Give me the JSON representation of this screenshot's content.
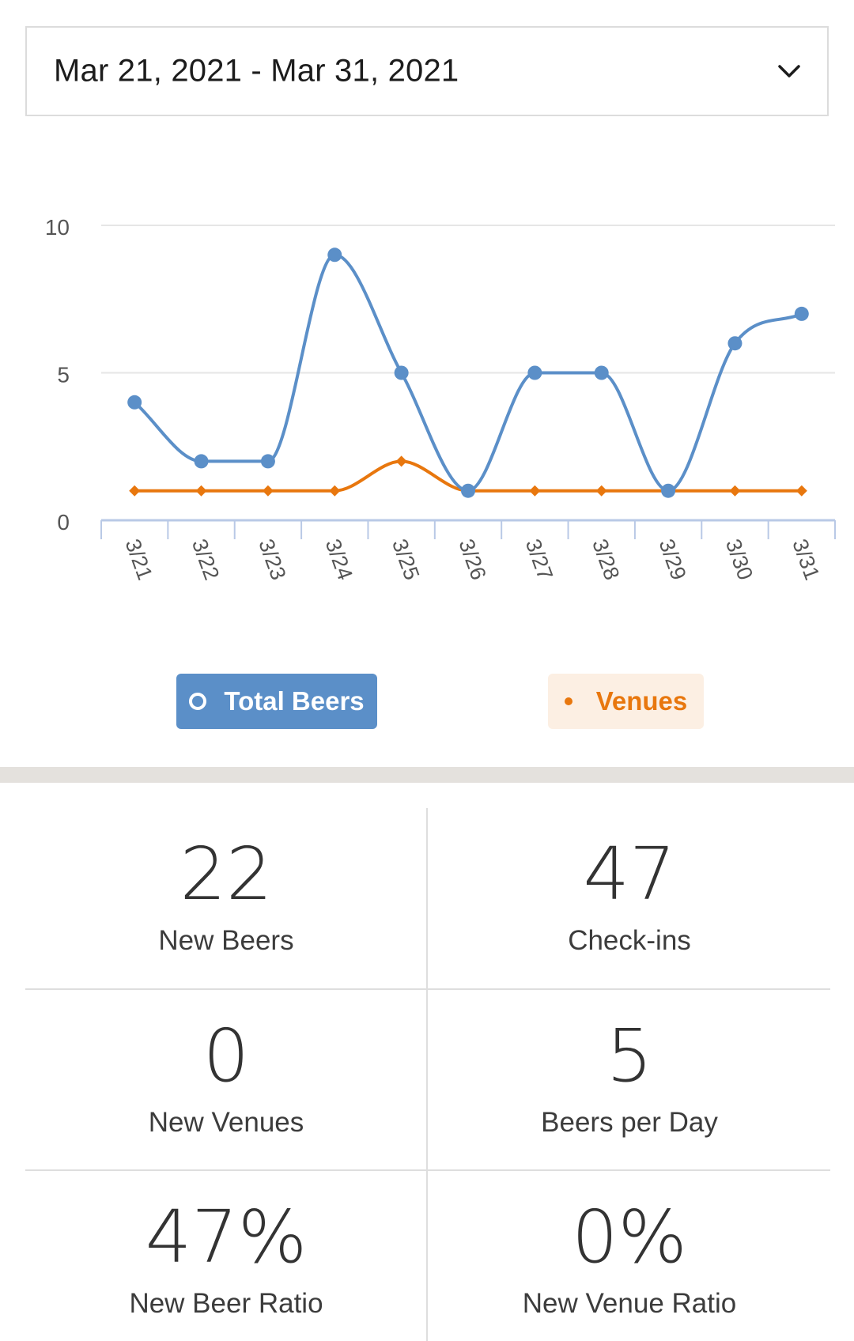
{
  "date_range": {
    "label": "Mar 21, 2021 - Mar 31, 2021"
  },
  "colors": {
    "total_beers": "#5b8fc8",
    "venues": "#e8770e",
    "grid": "#e6e6e6",
    "axis": "#b9c9e6"
  },
  "chart_data": {
    "type": "line",
    "categories": [
      "3/21",
      "3/22",
      "3/23",
      "3/24",
      "3/25",
      "3/26",
      "3/27",
      "3/28",
      "3/29",
      "3/30",
      "3/31"
    ],
    "series": [
      {
        "name": "Total Beers",
        "values": [
          4,
          2,
          2,
          9,
          5,
          1,
          5,
          5,
          1,
          6,
          7
        ]
      },
      {
        "name": "Venues",
        "values": [
          1,
          1,
          1,
          1,
          2,
          1,
          1,
          1,
          1,
          1,
          1
        ]
      }
    ],
    "y_ticks": [
      0,
      5,
      10
    ],
    "ylim": [
      0,
      10
    ],
    "grid": true,
    "legend": "bottom"
  },
  "legend": {
    "total_label": "Total Beers",
    "venues_label": "Venues"
  },
  "stats": [
    {
      "value": "22",
      "label": "New Beers"
    },
    {
      "value": "47",
      "label": "Check-ins"
    },
    {
      "value": "0",
      "label": "New Venues"
    },
    {
      "value": "5",
      "label": "Beers per Day"
    },
    {
      "value": "47%",
      "label": "New Beer Ratio"
    },
    {
      "value": "0%",
      "label": "New Venue Ratio"
    }
  ]
}
